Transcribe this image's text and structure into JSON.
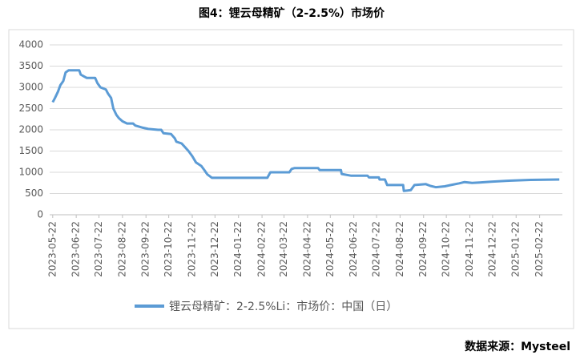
{
  "chart_data": {
    "type": "line",
    "title": "图4：锂云母精矿（2-2.5%）市场价",
    "source": "数据来源：Mysteel",
    "x": [
      "2023-05-22",
      "2023-05-25",
      "2023-05-29",
      "2023-06-01",
      "2023-06-05",
      "2023-06-08",
      "2023-06-12",
      "2023-06-26",
      "2023-06-28",
      "2023-07-03",
      "2023-07-06",
      "2023-07-17",
      "2023-07-20",
      "2023-07-24",
      "2023-07-31",
      "2023-08-03",
      "2023-08-07",
      "2023-08-10",
      "2023-08-14",
      "2023-08-17",
      "2023-08-22",
      "2023-08-28",
      "2023-09-05",
      "2023-09-08",
      "2023-09-18",
      "2023-09-25",
      "2023-10-08",
      "2023-10-12",
      "2023-10-15",
      "2023-10-25",
      "2023-10-30",
      "2023-11-01",
      "2023-11-08",
      "2023-11-13",
      "2023-11-17",
      "2023-11-22",
      "2023-11-27",
      "2023-12-04",
      "2023-12-08",
      "2023-12-12",
      "2023-12-18",
      "2024-02-29",
      "2024-03-04",
      "2024-03-29",
      "2024-04-01",
      "2024-04-05",
      "2024-05-06",
      "2024-05-08",
      "2024-06-05",
      "2024-06-06",
      "2024-06-18",
      "2024-07-10",
      "2024-07-12",
      "2024-07-25",
      "2024-07-26",
      "2024-08-02",
      "2024-08-05",
      "2024-08-26",
      "2024-08-27",
      "2024-09-05",
      "2024-09-10",
      "2024-09-25",
      "2024-10-01",
      "2024-10-08",
      "2024-10-20",
      "2024-10-28",
      "2024-11-08",
      "2024-11-15",
      "2024-11-25",
      "2024-12-05",
      "2024-12-20",
      "2025-01-10",
      "2025-02-10",
      "2025-03-20"
    ],
    "series": [
      {
        "name": "锂云母精矿：2-2.5%Li：市场价：中国（日）",
        "color": "#5b9bd5",
        "values": [
          2650,
          2750,
          2900,
          3050,
          3150,
          3350,
          3400,
          3400,
          3300,
          3250,
          3220,
          3220,
          3100,
          3000,
          2950,
          2850,
          2750,
          2500,
          2350,
          2280,
          2200,
          2150,
          2150,
          2100,
          2050,
          2020,
          2000,
          2000,
          1920,
          1900,
          1800,
          1720,
          1680,
          1580,
          1500,
          1380,
          1230,
          1150,
          1050,
          950,
          870,
          870,
          1000,
          1000,
          1080,
          1100,
          1100,
          1050,
          1050,
          960,
          920,
          920,
          880,
          880,
          830,
          830,
          700,
          700,
          560,
          580,
          700,
          720,
          680,
          650,
          670,
          700,
          740,
          770,
          750,
          760,
          780,
          800,
          820,
          830
        ]
      }
    ],
    "xlim": [
      "2023-05-18",
      "2025-03-24"
    ],
    "xticks": [
      "2023-05-22",
      "2023-06-22",
      "2023-07-22",
      "2023-08-22",
      "2023-09-22",
      "2023-10-22",
      "2023-11-22",
      "2023-12-22",
      "2024-01-22",
      "2024-02-22",
      "2024-03-22",
      "2024-04-22",
      "2024-05-22",
      "2024-06-22",
      "2024-07-22",
      "2024-08-22",
      "2024-09-22",
      "2024-10-22",
      "2024-11-22",
      "2024-12-22",
      "2025-01-22",
      "2025-02-22"
    ],
    "ylim": [
      0,
      4000
    ],
    "yticks": [
      0,
      500,
      1000,
      1500,
      2000,
      2500,
      3000,
      3500,
      4000
    ],
    "grid": true
  }
}
